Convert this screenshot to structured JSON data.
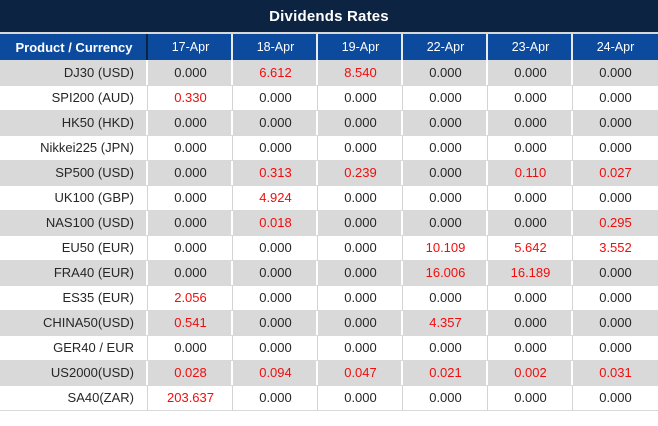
{
  "title": "Dividends Rates",
  "colors": {
    "title_bar_navy": "#0d2342",
    "header_blue": "#0c4a9e",
    "row_gray": "#d9d9d9",
    "value_red": "#f20d0d",
    "text_dark": "#262626"
  },
  "table": {
    "product_header": "Product / Currency",
    "date_headers": [
      "17-Apr",
      "18-Apr",
      "19-Apr",
      "22-Apr",
      "23-Apr",
      "24-Apr"
    ],
    "rows": [
      {
        "product": "DJ30 (USD)",
        "values": [
          "0.000",
          "6.612",
          "8.540",
          "0.000",
          "0.000",
          "0.000"
        ]
      },
      {
        "product": "SPI200 (AUD)",
        "values": [
          "0.330",
          "0.000",
          "0.000",
          "0.000",
          "0.000",
          "0.000"
        ]
      },
      {
        "product": "HK50 (HKD)",
        "values": [
          "0.000",
          "0.000",
          "0.000",
          "0.000",
          "0.000",
          "0.000"
        ]
      },
      {
        "product": "Nikkei225 (JPN)",
        "values": [
          "0.000",
          "0.000",
          "0.000",
          "0.000",
          "0.000",
          "0.000"
        ]
      },
      {
        "product": "SP500 (USD)",
        "values": [
          "0.000",
          "0.313",
          "0.239",
          "0.000",
          "0.110",
          "0.027"
        ]
      },
      {
        "product": "UK100 (GBP)",
        "values": [
          "0.000",
          "4.924",
          "0.000",
          "0.000",
          "0.000",
          "0.000"
        ]
      },
      {
        "product": "NAS100 (USD)",
        "values": [
          "0.000",
          "0.018",
          "0.000",
          "0.000",
          "0.000",
          "0.295"
        ]
      },
      {
        "product": "EU50 (EUR)",
        "values": [
          "0.000",
          "0.000",
          "0.000",
          "10.109",
          "5.642",
          "3.552"
        ]
      },
      {
        "product": "FRA40 (EUR)",
        "values": [
          "0.000",
          "0.000",
          "0.000",
          "16.006",
          "16.189",
          "0.000"
        ]
      },
      {
        "product": "ES35 (EUR)",
        "values": [
          "2.056",
          "0.000",
          "0.000",
          "0.000",
          "0.000",
          "0.000"
        ]
      },
      {
        "product": "CHINA50(USD)",
        "values": [
          "0.541",
          "0.000",
          "0.000",
          "4.357",
          "0.000",
          "0.000"
        ]
      },
      {
        "product": "GER40 / EUR",
        "values": [
          "0.000",
          "0.000",
          "0.000",
          "0.000",
          "0.000",
          "0.000"
        ]
      },
      {
        "product": "US2000(USD)",
        "values": [
          "0.028",
          "0.094",
          "0.047",
          "0.021",
          "0.002",
          "0.031"
        ]
      },
      {
        "product": "SA40(ZAR)",
        "values": [
          "203.637",
          "0.000",
          "0.000",
          "0.000",
          "0.000",
          "0.000"
        ]
      }
    ]
  }
}
